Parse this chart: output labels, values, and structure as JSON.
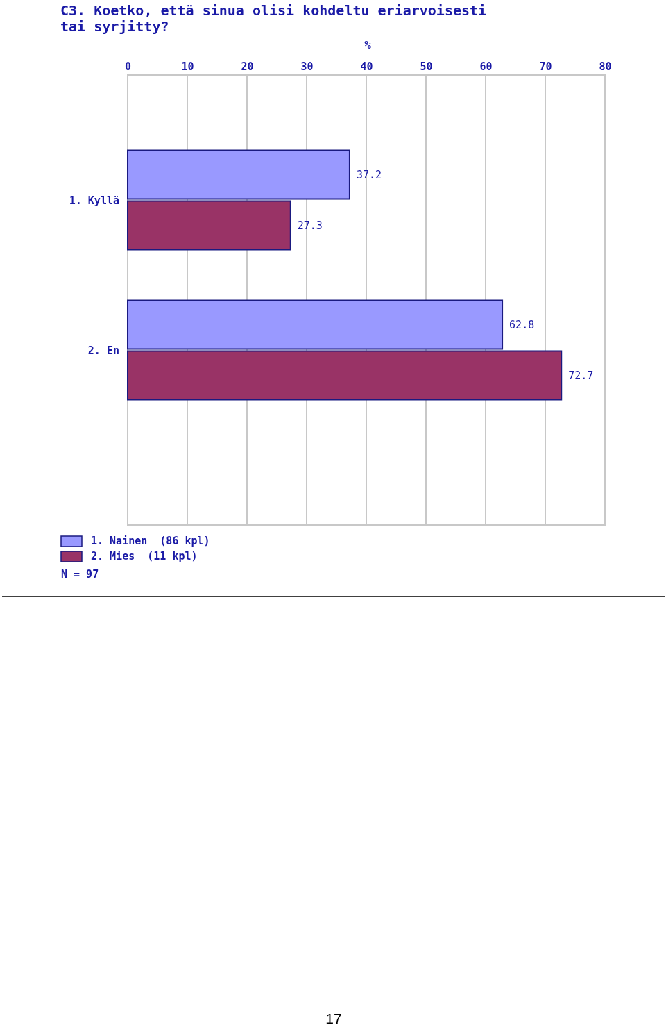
{
  "chart_data": {
    "type": "bar",
    "orientation": "horizontal",
    "title": "C3. Koetko, että sinua olisi kohdeltu eriarvoisesti\ntai syrjitty?",
    "xlabel": "%",
    "categories": [
      "1. Kyllä",
      "2. En"
    ],
    "series": [
      {
        "name": "1. Nainen  (86 kpl)",
        "color": "#9999ff",
        "values": [
          37.2,
          62.8
        ]
      },
      {
        "name": "2. Mies  (11 kpl)",
        "color": "#993366",
        "values": [
          27.3,
          72.7
        ]
      }
    ],
    "xlim": [
      0,
      80
    ],
    "xticks": [
      0,
      10,
      20,
      30,
      40,
      50,
      60,
      70,
      80
    ],
    "grid": "x",
    "legend": "bottom left",
    "data_labels": true,
    "annotations": [
      "N = 97",
      "17"
    ]
  }
}
